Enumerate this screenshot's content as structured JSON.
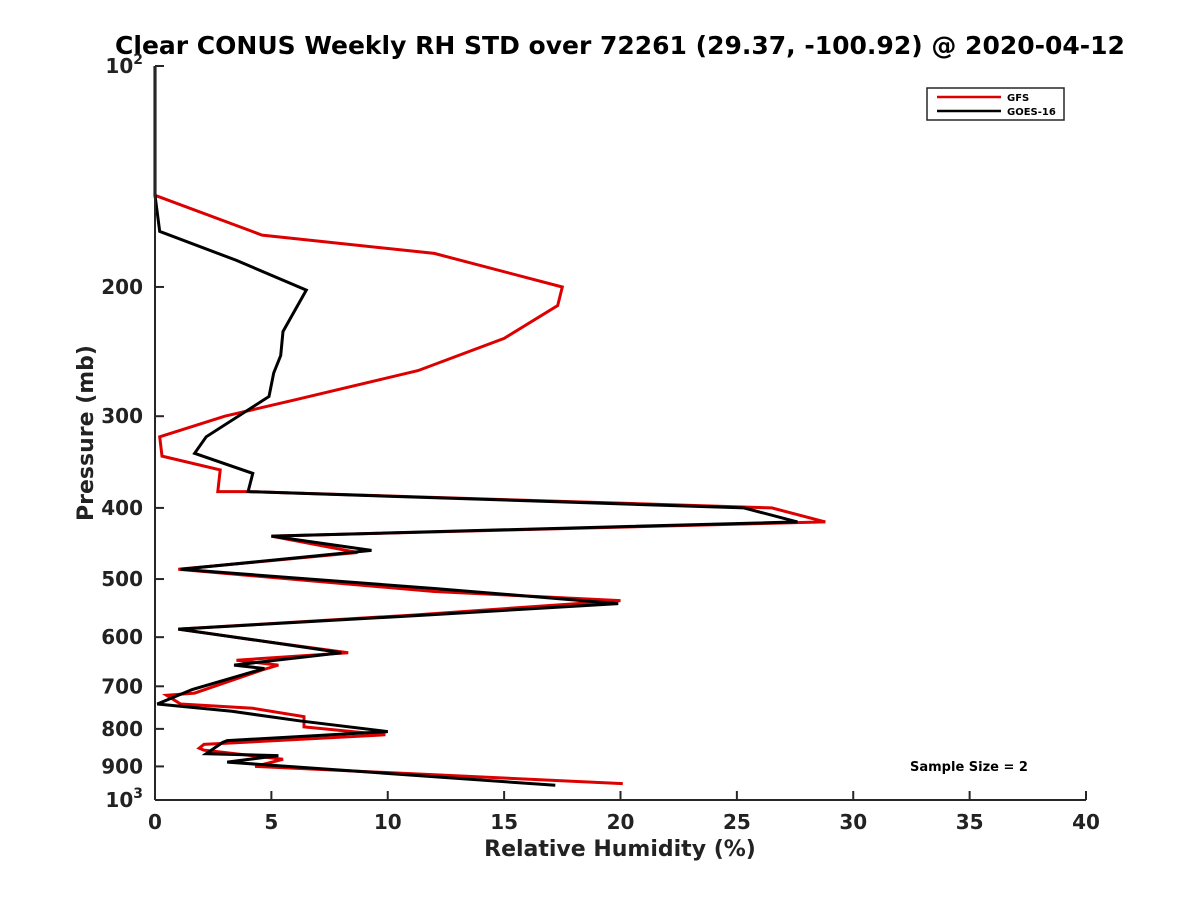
{
  "chart_data": {
    "type": "line",
    "title": "Clear CONUS Weekly RH STD over 72261 (29.37, -100.92) @ 2020-04-12",
    "xlabel": "Relative Humidity (%)",
    "ylabel": "Pressure (mb)",
    "xlim": [
      0,
      40
    ],
    "ylim": [
      100,
      1000
    ],
    "yscale": "log",
    "y_reversed": true,
    "grid": false,
    "legend_position": "top-right",
    "x_ticks": [
      "0",
      "5",
      "10",
      "15",
      "20",
      "25",
      "30",
      "35",
      "40"
    ],
    "y_ticks": [
      {
        "value": 100,
        "base": "10",
        "exp": "2"
      },
      {
        "value": 200,
        "label": "200"
      },
      {
        "value": 300,
        "label": "300"
      },
      {
        "value": 400,
        "label": "400"
      },
      {
        "value": 500,
        "label": "500"
      },
      {
        "value": 600,
        "label": "600"
      },
      {
        "value": 700,
        "label": "700"
      },
      {
        "value": 800,
        "label": "800"
      },
      {
        "value": 900,
        "label": "900"
      },
      {
        "value": 1000,
        "base": "10",
        "exp": "3"
      }
    ],
    "series": [
      {
        "name": "GFS",
        "color": "#dd0000",
        "x": [
          0,
          0,
          4.6,
          12,
          17.5,
          17.3,
          15,
          11.3,
          6,
          3,
          0.2,
          0.3,
          2.8,
          2.7,
          4,
          26.5,
          28.8,
          5,
          8.7,
          1,
          12,
          20,
          11,
          1,
          5,
          8.3,
          3.5,
          5.3,
          4.6,
          1.7,
          0.5,
          1.1,
          4.2,
          6.4,
          6.4,
          9.9,
          2.1,
          1.9,
          2.1,
          5.5,
          4.3,
          20.1
        ],
        "y": [
          100,
          150,
          170,
          180,
          200,
          212,
          235,
          260,
          285,
          300,
          320,
          340,
          355,
          380,
          380,
          400,
          418,
          437,
          460,
          485,
          520,
          535,
          560,
          585,
          610,
          630,
          645,
          655,
          665,
          715,
          720,
          740,
          750,
          770,
          795,
          815,
          840,
          850,
          855,
          880,
          900,
          950
        ]
      },
      {
        "name": "GOES-16",
        "color": "#000000",
        "x": [
          0,
          0,
          0.2,
          3.5,
          6.5,
          5.5,
          5.4,
          5.1,
          4.9,
          2.2,
          1.7,
          4.2,
          4,
          25.3,
          27.6,
          5,
          9.3,
          1.1,
          12,
          19.9,
          11.5,
          1,
          5,
          8,
          3.4,
          4.7,
          1.6,
          0.1,
          3.3,
          6.2,
          10,
          3.1,
          2.9,
          2.2,
          5.3,
          3.1,
          17.2
        ],
        "y": [
          100,
          150,
          168,
          184,
          202,
          230,
          248,
          262,
          282,
          320,
          337,
          359,
          380,
          400,
          418,
          437,
          457,
          485,
          515,
          540,
          560,
          585,
          610,
          630,
          655,
          662,
          707,
          740,
          757,
          780,
          807,
          830,
          835,
          865,
          870,
          888,
          955
        ]
      }
    ],
    "annotation": "Sample Size = 2"
  }
}
